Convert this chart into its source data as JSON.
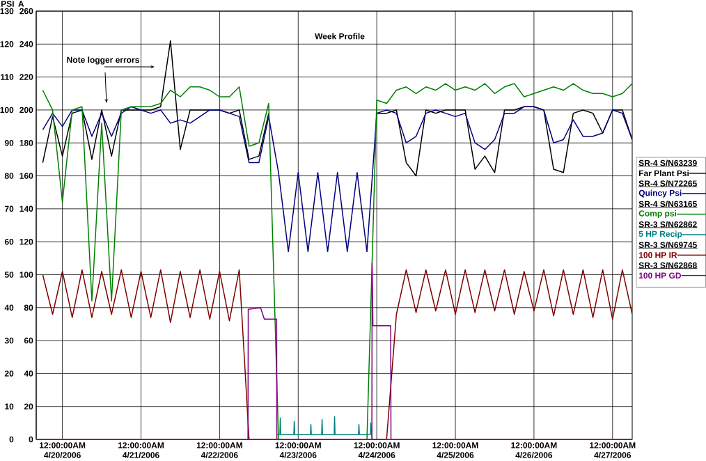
{
  "chart_data": {
    "type": "line",
    "ylabel": "PSI",
    "y2label": "A",
    "annotations": [
      "Week Profile",
      "Note logger errors",
      "SR-4 S/N63239",
      "SR-4 S/N72265",
      "SR-4 S/N63165",
      "SR-3 S/N62862",
      "SR-3 S/N69745",
      "SR-3 S/N62868"
    ],
    "x": [
      "2006-04-19T18:00",
      "2006-04-19T21:00",
      "2006-04-20T00:00",
      "2006-04-20T03:00",
      "2006-04-20T06:00",
      "2006-04-20T09:00",
      "2006-04-20T12:00",
      "2006-04-20T15:00",
      "2006-04-20T18:00",
      "2006-04-20T21:00",
      "2006-04-21T00:00",
      "2006-04-21T03:00",
      "2006-04-21T06:00",
      "2006-04-21T09:00",
      "2006-04-21T12:00",
      "2006-04-21T15:00",
      "2006-04-21T18:00",
      "2006-04-21T21:00",
      "2006-04-22T00:00",
      "2006-04-22T03:00",
      "2006-04-22T06:00",
      "2006-04-22T09:00",
      "2006-04-22T12:00",
      "2006-04-22T15:00",
      "2006-04-22T18:00",
      "2006-04-22T21:00",
      "2006-04-23T00:00",
      "2006-04-23T03:00",
      "2006-04-23T06:00",
      "2006-04-23T09:00",
      "2006-04-23T12:00",
      "2006-04-23T15:00",
      "2006-04-23T18:00",
      "2006-04-23T21:00",
      "2006-04-24T00:00",
      "2006-04-24T03:00",
      "2006-04-24T06:00",
      "2006-04-24T09:00",
      "2006-04-24T12:00",
      "2006-04-24T15:00",
      "2006-04-24T18:00",
      "2006-04-24T21:00",
      "2006-04-25T00:00",
      "2006-04-25T03:00",
      "2006-04-25T06:00",
      "2006-04-25T09:00",
      "2006-04-25T12:00",
      "2006-04-25T15:00",
      "2006-04-25T18:00",
      "2006-04-25T21:00",
      "2006-04-26T00:00",
      "2006-04-26T03:00",
      "2006-04-26T06:00",
      "2006-04-26T09:00",
      "2006-04-26T12:00",
      "2006-04-26T15:00",
      "2006-04-26T18:00",
      "2006-04-26T21:00",
      "2006-04-27T00:00",
      "2006-04-27T03:00",
      "2006-04-27T06:00"
    ],
    "series": [
      {
        "name": "Far Plant Psi",
        "color": "#000000",
        "values": [
          84,
          98,
          86,
          99,
          100,
          85,
          100,
          86,
          100,
          100,
          100,
          100,
          101,
          121,
          88,
          100,
          100,
          100,
          100,
          99,
          100,
          85,
          86,
          99,
          null,
          null,
          null,
          null,
          null,
          null,
          null,
          null,
          null,
          null,
          99,
          99,
          100,
          84,
          80,
          100,
          99,
          100,
          100,
          100,
          82,
          86,
          81,
          100,
          100,
          101,
          101,
          100,
          82,
          81,
          99,
          100,
          99,
          93,
          100,
          100,
          91
        ]
      },
      {
        "name": "Quincy Psi",
        "color": "#000080",
        "values": [
          94,
          99,
          95,
          100,
          100,
          92,
          99,
          92,
          99,
          101,
          100,
          99,
          100,
          96,
          97,
          96,
          98,
          100,
          100,
          99,
          98,
          84,
          84,
          98,
          81,
          57,
          81,
          57,
          81,
          57,
          81,
          57,
          81,
          57,
          99,
          100,
          99,
          90,
          92,
          99,
          100,
          99,
          98,
          99,
          90,
          88,
          91,
          99,
          99,
          101,
          101,
          100,
          90,
          91,
          97,
          92,
          92,
          93,
          100,
          99,
          91
        ]
      },
      {
        "name": "Comp psi",
        "color": "#008000",
        "values": [
          106,
          100,
          72,
          100,
          101,
          42,
          96,
          42,
          100,
          101,
          101,
          101,
          102,
          106,
          104,
          107,
          107,
          106,
          104,
          104,
          107,
          89,
          90,
          102,
          0,
          0,
          0,
          0,
          0,
          0,
          0,
          0,
          0,
          0,
          103,
          102,
          106,
          107,
          105,
          107,
          106,
          108,
          106,
          107,
          106,
          108,
          105,
          107,
          108,
          104,
          105,
          106,
          107,
          106,
          108,
          106,
          105,
          105,
          104,
          105,
          108
        ]
      },
      {
        "name": "5 HP Recip",
        "color": "#008080",
        "axis": "y2",
        "x": [
          "2006-04-22T17:30",
          "2006-04-22T18:25",
          "2006-04-22T18:32",
          "2006-04-22T18:40",
          "2006-04-22T22:40",
          "2006-04-22T22:48",
          "2006-04-22T22:56",
          "2006-04-23T03:45",
          "2006-04-23T03:53",
          "2006-04-23T04:00",
          "2006-04-23T07:10",
          "2006-04-23T07:18",
          "2006-04-23T07:26",
          "2006-04-23T11:00",
          "2006-04-23T11:07",
          "2006-04-23T11:15",
          "2006-04-23T18:25",
          "2006-04-23T18:33",
          "2006-04-23T18:41",
          "2006-04-23T22:05",
          "2006-04-23T22:10",
          "2006-04-23T22:30",
          "2006-04-23T22:36"
        ],
        "values": [
          3,
          3,
          13,
          3,
          3,
          11,
          3,
          3,
          9,
          3,
          3,
          12,
          3,
          3,
          14,
          3,
          3,
          9,
          3,
          3,
          10,
          3,
          0
        ]
      },
      {
        "name": "100 HP IR",
        "color": "#800000",
        "axis": "y2",
        "values": [
          100,
          76,
          102,
          74,
          103,
          74,
          102,
          76,
          103,
          74,
          102,
          74,
          103,
          71,
          102,
          74,
          103,
          73,
          102,
          72,
          103,
          0,
          0,
          0,
          0,
          0,
          0,
          0,
          0,
          0,
          0,
          0,
          0,
          0,
          0,
          0,
          76,
          103,
          77,
          103,
          78,
          103,
          76,
          103,
          77,
          103,
          78,
          103,
          76,
          102,
          78,
          103,
          75,
          103,
          76,
          103,
          74,
          103,
          73,
          103,
          76
        ]
      },
      {
        "name": "100 HP GD",
        "color": "#800080",
        "axis": "y2",
        "x": [
          "2006-04-19T16:00",
          "2006-04-22T08:40",
          "2006-04-22T08:45",
          "2006-04-22T12:30",
          "2006-04-22T13:40",
          "2006-04-22T17:25",
          "2006-04-22T17:30",
          "2006-04-23T22:30",
          "2006-04-23T22:35",
          "2006-04-23T22:50",
          "2006-04-24T04:15",
          "2006-04-24T04:20",
          "2006-04-27T06:00"
        ],
        "values": [
          0,
          0,
          79,
          80,
          73,
          73,
          0,
          0,
          107,
          69,
          69,
          0,
          0
        ]
      }
    ],
    "xlim": [
      "2006-04-19T16:00",
      "2006-04-27T06:00"
    ],
    "xticks": [
      {
        "value": "2006-04-20T00:00",
        "label": "12:00:00AM 4/20/2006"
      },
      {
        "value": "2006-04-21T00:00",
        "label": "12:00:00AM 4/21/2006"
      },
      {
        "value": "2006-04-22T00:00",
        "label": "12:00:00AM 4/22/2006"
      },
      {
        "value": "2006-04-23T00:00",
        "label": "12:00:00AM 4/23/2006"
      },
      {
        "value": "2006-04-24T00:00",
        "label": "12:00:00AM 4/24/2006"
      },
      {
        "value": "2006-04-25T00:00",
        "label": "12:00:00AM 4/25/2006"
      },
      {
        "value": "2006-04-26T00:00",
        "label": "12:00:00AM 4/26/2006"
      },
      {
        "value": "2006-04-27T00:00",
        "label": "12:00:00AM 4/27/2006"
      }
    ],
    "ylim": [
      0,
      130
    ],
    "yticks": [
      0,
      10,
      20,
      30,
      40,
      50,
      60,
      70,
      80,
      90,
      100,
      110,
      120,
      130
    ],
    "y2lim": [
      0,
      260
    ],
    "y2ticks": [
      0,
      20,
      40,
      60,
      80,
      100,
      120,
      140,
      160,
      180,
      200,
      220,
      240,
      260
    ],
    "grid": true,
    "legend": "right",
    "marker": "none",
    "line_style": "solid"
  }
}
